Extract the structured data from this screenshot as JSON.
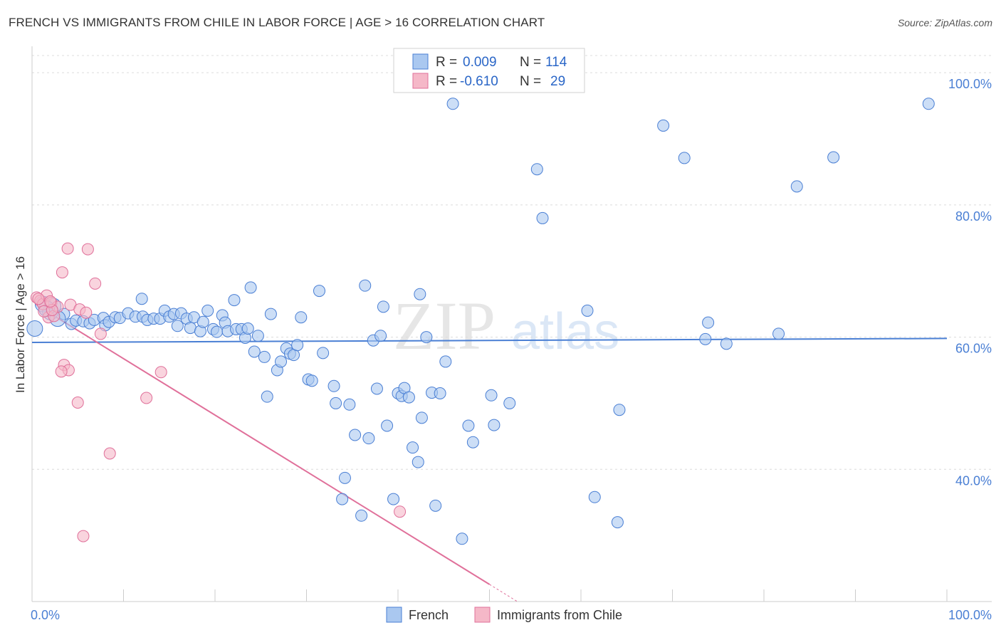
{
  "title": "FRENCH VS IMMIGRANTS FROM CHILE IN LABOR FORCE | AGE > 16 CORRELATION CHART",
  "source": "Source: ZipAtlas.com",
  "watermark": {
    "zip": "ZIP",
    "atlas": "atlas"
  },
  "legend": {
    "r_label": "R =",
    "n_label": "N =",
    "rows": [
      {
        "r": "0.009",
        "n": "114",
        "color": "#aac8f0"
      },
      {
        "r": "-0.610",
        "n": "29",
        "color": "#f5b8c8"
      }
    ]
  },
  "bottom_legend": [
    {
      "label": "French",
      "color": "#aac8f0"
    },
    {
      "label": "Immigrants from Chile",
      "color": "#f5b8c8"
    }
  ],
  "chart_data": {
    "type": "scatter",
    "title": "FRENCH VS IMMIGRANTS FROM CHILE IN LABOR FORCE | AGE > 16 CORRELATION CHART",
    "xlabel": "",
    "ylabel": "In Labor Force | Age > 16",
    "xlim": [
      0,
      100
    ],
    "ylim": [
      20,
      104
    ],
    "x_tick_labels": [
      "0.0%",
      "100.0%"
    ],
    "y_ticks": [
      40,
      60,
      80,
      100
    ],
    "y_tick_labels": [
      "40.0%",
      "60.0%",
      "80.0%",
      "100.0%"
    ],
    "grid": true,
    "series": [
      {
        "name": "French",
        "color": "#4a7fd4",
        "fill": "#aac8f0",
        "trend": {
          "x": [
            0,
            100
          ],
          "y": [
            59.2,
            59.8
          ]
        },
        "points": [
          [
            0.3,
            61.3
          ],
          [
            1.2,
            65.0
          ],
          [
            2.0,
            63.8
          ],
          [
            2.3,
            64.7
          ],
          [
            3.5,
            63.5
          ],
          [
            4.3,
            62.0
          ],
          [
            4.8,
            62.5
          ],
          [
            5.6,
            62.4
          ],
          [
            6.3,
            62.1
          ],
          [
            6.8,
            62.6
          ],
          [
            7.8,
            62.9
          ],
          [
            8.0,
            61.8
          ],
          [
            8.4,
            62.3
          ],
          [
            9.1,
            63.0
          ],
          [
            9.6,
            62.9
          ],
          [
            10.5,
            63.6
          ],
          [
            11.3,
            63.1
          ],
          [
            12.0,
            65.8
          ],
          [
            12.1,
            63.1
          ],
          [
            12.6,
            62.6
          ],
          [
            13.3,
            62.8
          ],
          [
            14.0,
            62.8
          ],
          [
            14.5,
            64.0
          ],
          [
            15.0,
            63.1
          ],
          [
            15.5,
            63.5
          ],
          [
            15.9,
            61.7
          ],
          [
            16.3,
            63.6
          ],
          [
            16.9,
            62.8
          ],
          [
            17.3,
            61.4
          ],
          [
            17.7,
            63.0
          ],
          [
            18.4,
            60.9
          ],
          [
            18.7,
            62.3
          ],
          [
            19.2,
            64.0
          ],
          [
            19.8,
            61.2
          ],
          [
            20.2,
            60.8
          ],
          [
            20.8,
            63.3
          ],
          [
            21.1,
            62.2
          ],
          [
            21.4,
            60.9
          ],
          [
            22.1,
            65.6
          ],
          [
            22.3,
            61.2
          ],
          [
            22.9,
            61.2
          ],
          [
            23.3,
            59.9
          ],
          [
            23.6,
            61.3
          ],
          [
            23.9,
            67.5
          ],
          [
            24.3,
            57.8
          ],
          [
            24.7,
            60.2
          ],
          [
            25.4,
            57.0
          ],
          [
            25.7,
            51.0
          ],
          [
            26.1,
            63.5
          ],
          [
            26.8,
            55.0
          ],
          [
            27.2,
            56.3
          ],
          [
            27.8,
            58.3
          ],
          [
            28.2,
            57.5
          ],
          [
            28.6,
            57.3
          ],
          [
            29.0,
            58.8
          ],
          [
            29.4,
            63.0
          ],
          [
            30.2,
            53.6
          ],
          [
            30.6,
            53.4
          ],
          [
            31.4,
            67.0
          ],
          [
            31.8,
            57.6
          ],
          [
            33.0,
            52.6
          ],
          [
            33.2,
            50.0
          ],
          [
            33.9,
            35.5
          ],
          [
            34.2,
            38.7
          ],
          [
            34.7,
            49.8
          ],
          [
            35.3,
            45.2
          ],
          [
            36.0,
            33.0
          ],
          [
            36.4,
            67.8
          ],
          [
            36.8,
            44.7
          ],
          [
            37.3,
            59.5
          ],
          [
            37.7,
            52.2
          ],
          [
            38.1,
            60.2
          ],
          [
            38.4,
            64.6
          ],
          [
            38.8,
            46.6
          ],
          [
            39.5,
            35.5
          ],
          [
            40.0,
            51.5
          ],
          [
            40.4,
            51.1
          ],
          [
            40.7,
            52.3
          ],
          [
            41.2,
            50.9
          ],
          [
            41.6,
            43.3
          ],
          [
            42.2,
            41.1
          ],
          [
            42.4,
            66.5
          ],
          [
            42.6,
            47.8
          ],
          [
            43.1,
            60.0
          ],
          [
            44.1,
            34.5
          ],
          [
            43.7,
            51.6
          ],
          [
            44.6,
            51.5
          ],
          [
            45.2,
            56.3
          ],
          [
            46.0,
            95.3
          ],
          [
            47.0,
            29.5
          ],
          [
            47.7,
            46.6
          ],
          [
            48.2,
            44.1
          ],
          [
            50.2,
            51.2
          ],
          [
            50.5,
            46.7
          ],
          [
            52.2,
            50.0
          ],
          [
            55.2,
            85.4
          ],
          [
            55.8,
            78.0
          ],
          [
            69.0,
            92.0
          ],
          [
            60.7,
            64.0
          ],
          [
            61.5,
            35.8
          ],
          [
            64.0,
            32.0
          ],
          [
            64.2,
            49.0
          ],
          [
            71.3,
            87.1
          ],
          [
            73.6,
            59.7
          ],
          [
            73.9,
            62.2
          ],
          [
            75.9,
            59.0
          ],
          [
            81.6,
            60.5
          ],
          [
            83.6,
            82.8
          ],
          [
            87.6,
            87.2
          ],
          [
            98.0,
            95.3
          ],
          [
            1.6,
            64.3
          ],
          [
            2.8,
            62.8
          ]
        ]
      },
      {
        "name": "Immigrants from Chile",
        "color": "#e0709a",
        "fill": "#f5b8c8",
        "trend": {
          "x": [
            1.5,
            50.0
          ],
          "y": [
            64.0,
            22.6
          ]
        },
        "points": [
          [
            0.5,
            66.0
          ],
          [
            0.9,
            65.5
          ],
          [
            1.2,
            65.0
          ],
          [
            1.6,
            66.3
          ],
          [
            1.8,
            63.0
          ],
          [
            2.1,
            65.2
          ],
          [
            2.4,
            63.2
          ],
          [
            2.8,
            64.6
          ],
          [
            3.3,
            69.8
          ],
          [
            3.5,
            55.8
          ],
          [
            3.9,
            73.4
          ],
          [
            4.0,
            55.0
          ],
          [
            4.2,
            64.9
          ],
          [
            5.0,
            50.1
          ],
          [
            5.2,
            64.2
          ],
          [
            5.6,
            29.9
          ],
          [
            5.9,
            63.7
          ],
          [
            6.1,
            73.3
          ],
          [
            6.9,
            68.1
          ],
          [
            7.5,
            60.5
          ],
          [
            8.5,
            42.4
          ],
          [
            12.5,
            50.8
          ],
          [
            14.1,
            54.7
          ],
          [
            3.2,
            54.8
          ],
          [
            1.3,
            63.9
          ],
          [
            2.2,
            64.1
          ],
          [
            40.2,
            33.6
          ],
          [
            2.0,
            65.4
          ],
          [
            0.7,
            65.8
          ]
        ]
      }
    ]
  }
}
